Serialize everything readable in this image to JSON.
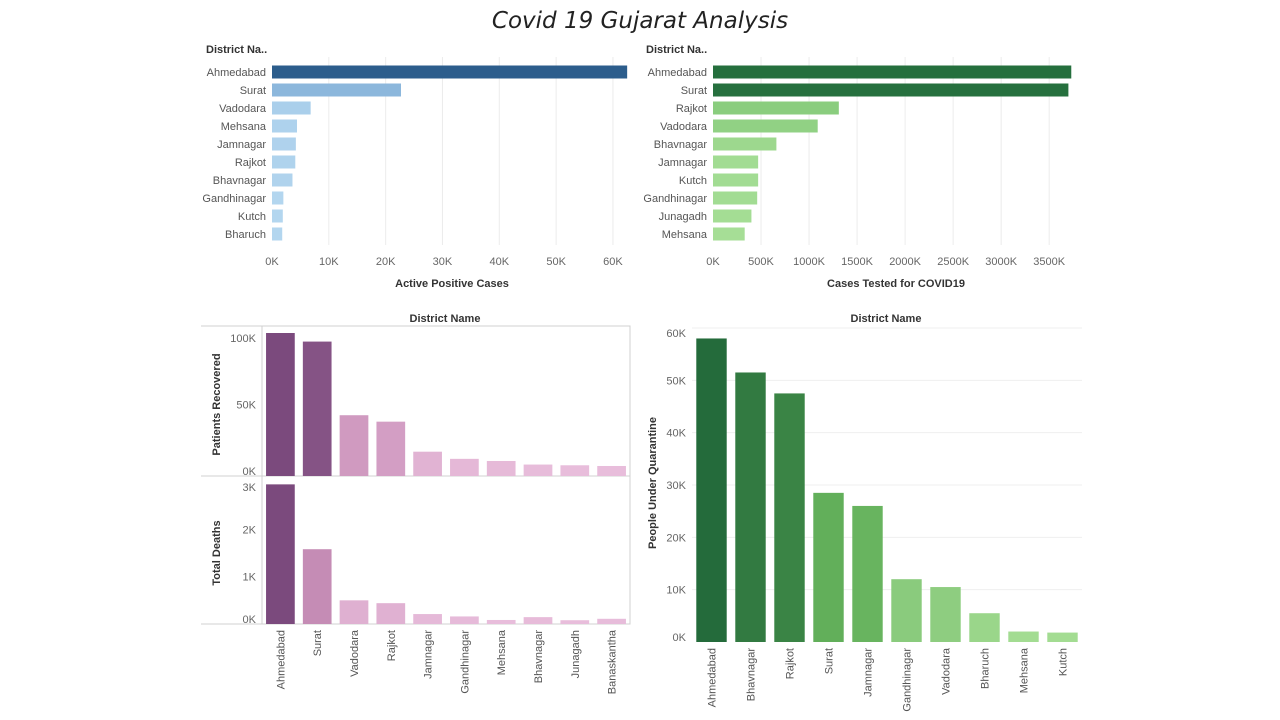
{
  "title": "Covid 19 Gujarat Analysis",
  "chart_data": [
    {
      "type": "bar",
      "orientation": "horizontal",
      "row_header": "District Na..",
      "categories": [
        "Ahmedabad",
        "Surat",
        "Vadodara",
        "Mehsana",
        "Jamnagar",
        "Rajkot",
        "Bhavnagar",
        "Gandhinagar",
        "Kutch",
        "Bharuch"
      ],
      "values": [
        62500,
        22700,
        6800,
        4400,
        4200,
        4100,
        3600,
        2000,
        1900,
        1800
      ],
      "xlabel": "Active Positive Cases",
      "xticks": [
        "0K",
        "10K",
        "20K",
        "30K",
        "40K",
        "50K",
        "60K"
      ],
      "xlim": [
        0,
        63000
      ],
      "colors": [
        "#2c5d8c",
        "#7ba9d4",
        "#b3d6ef"
      ]
    },
    {
      "type": "bar",
      "orientation": "horizontal",
      "row_header": "District Na..",
      "categories": [
        "Ahmedabad",
        "Surat",
        "Rajkot",
        "Vadodara",
        "Bhavnagar",
        "Jamnagar",
        "Kutch",
        "Gandhinagar",
        "Junagadh",
        "Mehsana"
      ],
      "values": [
        3730000,
        3700000,
        1310000,
        1090000,
        660000,
        470000,
        470000,
        460000,
        400000,
        330000
      ],
      "xlabel": "Cases Tested for COVID19",
      "xticks": [
        "0K",
        "500K",
        "1000K",
        "1500K",
        "2000K",
        "2500K",
        "3000K",
        "3500K"
      ],
      "xlim": [
        0,
        3800000
      ],
      "colors": [
        "#256f3d",
        "#76c16d",
        "#a6de96"
      ]
    },
    {
      "type": "bar",
      "header": "District Name",
      "categories": [
        "Ahmedabad",
        "Surat",
        "Vadodara",
        "Rajkot",
        "Jamnagar",
        "Gandhinagar",
        "Mehsana",
        "Bhavnagar",
        "Junagadh",
        "Banaskantha"
      ],
      "panels": [
        {
          "ylabel": "Patients Recovered",
          "values": [
            100000,
            94000,
            42500,
            38000,
            17000,
            12000,
            10500,
            8000,
            7500,
            7000
          ],
          "yticks": [
            "100K",
            "50K",
            "0K"
          ],
          "ylim": [
            0,
            100000
          ]
        },
        {
          "ylabel": "Total Deaths",
          "values": [
            2950,
            1580,
            500,
            440,
            210,
            160,
            85,
            145,
            80,
            110
          ],
          "yticks": [
            "3K",
            "2K",
            "1K",
            "0K"
          ],
          "ylim": [
            0,
            3000
          ]
        }
      ],
      "colors": [
        "#7b4a7d",
        "#c98fb8",
        "#e8bddb"
      ]
    },
    {
      "type": "bar",
      "header": "District Name",
      "categories": [
        "Ahmedabad",
        "Bhavnagar",
        "Rajkot",
        "Surat",
        "Jamnagar",
        "Gandhinagar",
        "Vadodara",
        "Bharuch",
        "Mehsana",
        "Kutch"
      ],
      "values": [
        58000,
        51500,
        47500,
        28500,
        26000,
        12000,
        10500,
        5500,
        2000,
        1800
      ],
      "ylabel": "People Under Quarantine",
      "yticks": [
        "60K",
        "50K",
        "40K",
        "30K",
        "20K",
        "10K",
        "0K"
      ],
      "ylim": [
        0,
        60000
      ],
      "colors": [
        "#246b3b",
        "#5fad57",
        "#a3dc92"
      ]
    }
  ]
}
